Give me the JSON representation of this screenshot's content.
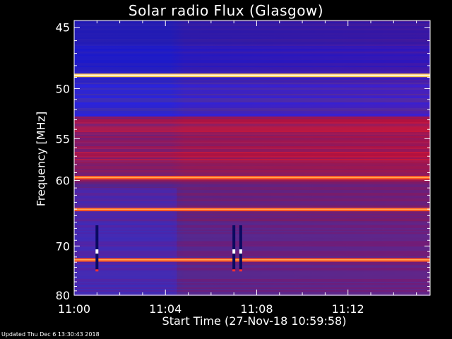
{
  "chart_data": {
    "type": "heatmap",
    "title": "Solar radio Flux (Glasgow)",
    "ylabel": "Frequency [MHz]",
    "xlabel": "Start Time (27-Nov-18 10:59:58)",
    "x_ticks": [
      "11:00",
      "11:04",
      "11:08",
      "11:12"
    ],
    "x_tick_values_min": [
      0,
      4,
      8,
      12
    ],
    "xlim_min": [
      0,
      15.6
    ],
    "y_ticks": [
      "45",
      "50",
      "55",
      "60",
      "70",
      "80"
    ],
    "y_tick_values": [
      45,
      50,
      55,
      60,
      70,
      80
    ],
    "ylim": [
      44.5,
      80
    ],
    "colormap": [
      "#0000a0",
      "#0000ff",
      "#5a2890",
      "#a01040",
      "#e00010",
      "#ff3010",
      "#ffd040",
      "#ffffff"
    ],
    "bright_bands_mhz": [
      48.8,
      59.6,
      64.0,
      72.5
    ],
    "bursts_min": [
      1.0,
      7.0,
      7.3
    ],
    "grid": false
  },
  "footer": "Updated Thu Dec  6 13:30:43 2018"
}
